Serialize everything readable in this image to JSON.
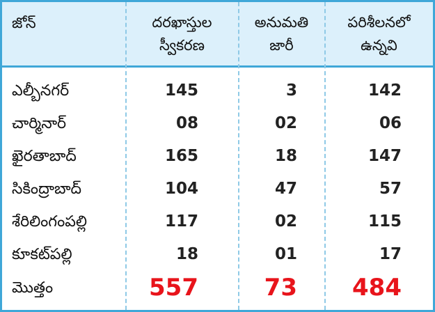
{
  "headers": {
    "zone": "జోన్",
    "applications_line1": "దరఖాస్తుల",
    "applications_line2": "స్వీకరణ",
    "permission_line1": "అనుమతి",
    "permission_line2": "జారీ",
    "training_line1": "పరిశీలనలో",
    "training_line2": "ఉన్నవి"
  },
  "rows": [
    {
      "zone": "ఎల్బీనగర్",
      "applications": "145",
      "permission": "3",
      "pending": "142"
    },
    {
      "zone": "చార్మినార్",
      "applications": "08",
      "permission": "02",
      "pending": "06"
    },
    {
      "zone": "ఖైరతాబాద్",
      "applications": "165",
      "permission": "18",
      "pending": "147"
    },
    {
      "zone": "సికింద్రాబాద్",
      "applications": "104",
      "permission": "47",
      "pending": "57"
    },
    {
      "zone": "శేరిలింగంపల్లి",
      "applications": "117",
      "permission": "02",
      "pending": "115"
    },
    {
      "zone": "కూకట్‌పల్లి",
      "applications": "18",
      "permission": "01",
      "pending": "17"
    }
  ],
  "total": {
    "zone": "మొత్తం",
    "applications": "557",
    "permission": "73",
    "pending": "484"
  },
  "colors": {
    "border": "#3fa7d8",
    "header_bg": "#dcf0fb",
    "total": "#e8141b"
  }
}
